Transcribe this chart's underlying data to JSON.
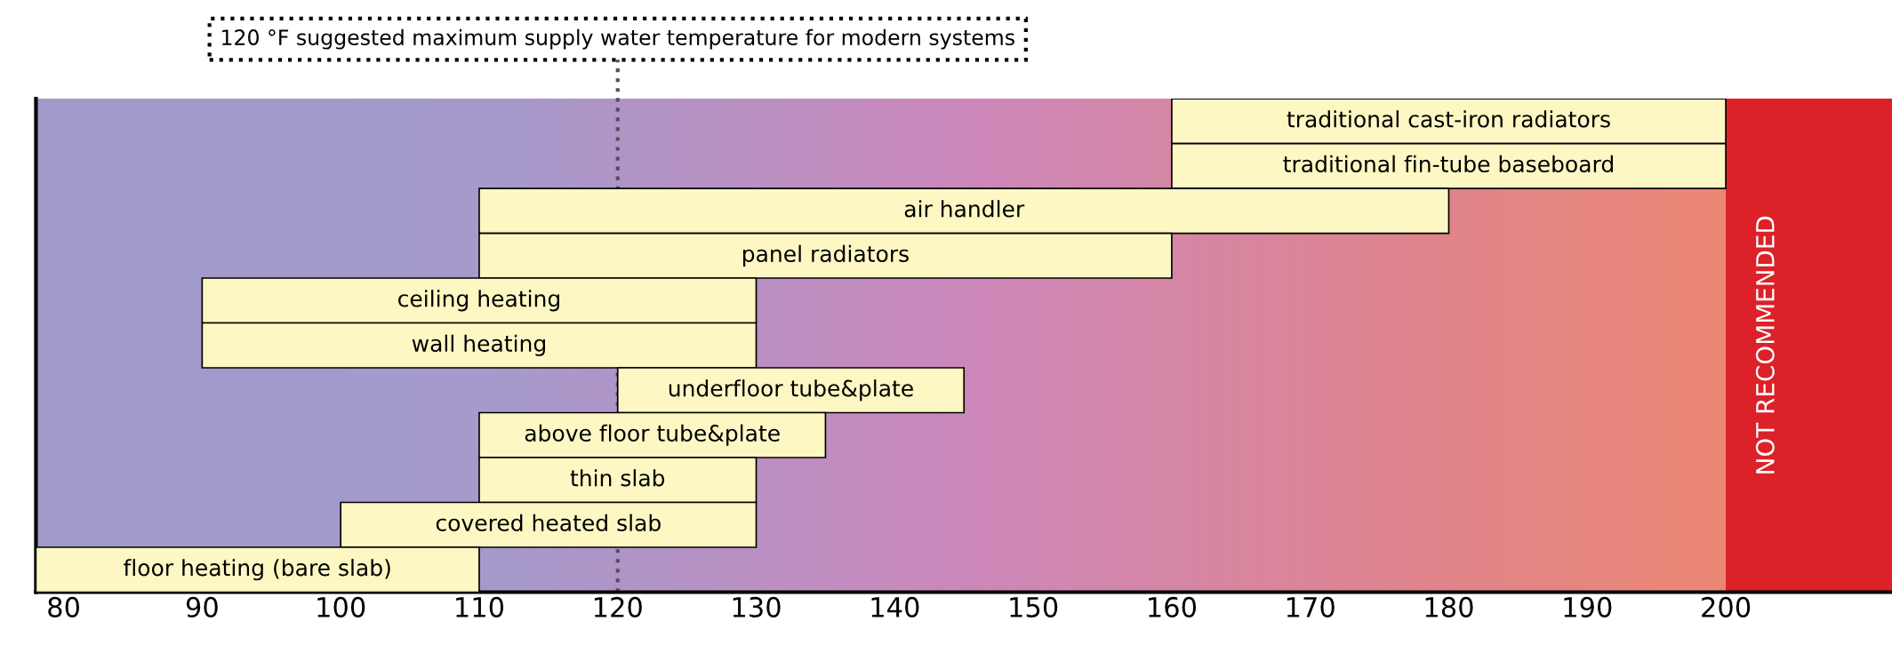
{
  "chart_data": {
    "type": "bar",
    "orientation": "horizontal",
    "categories": [
      "traditional cast-iron radiators",
      "traditional fin-tube baseboard",
      "air handler",
      "panel radiators",
      "ceiling heating",
      "wall heating",
      "underfloor tube&plate",
      "above floor tube&plate",
      "thin slab",
      "covered heated slab",
      "floor heating (bare slab)"
    ],
    "base": [
      160,
      160,
      110,
      110,
      90,
      90,
      120,
      110,
      110,
      100,
      78
    ],
    "values": [
      40,
      40,
      70,
      50,
      40,
      40,
      25,
      25,
      20,
      30,
      32
    ],
    "color": "#fdf7c3",
    "xlim": [
      78,
      212
    ],
    "xticks": [
      80,
      90,
      100,
      110,
      120,
      130,
      140,
      150,
      160,
      170,
      180,
      190,
      200
    ],
    "tick_labels": "x",
    "grid": false,
    "ref_lines": [
      {
        "axis": "x",
        "value": 120,
        "label": "120 °F suggested maximum supply water temperature for modern systems",
        "color": "#5a4a5a",
        "line_style": "dotted"
      }
    ],
    "bands": [
      {
        "axis": "x",
        "from": 200,
        "to": 212,
        "label": "NOT RECOMMENDED",
        "color": "#dc2128"
      }
    ]
  }
}
